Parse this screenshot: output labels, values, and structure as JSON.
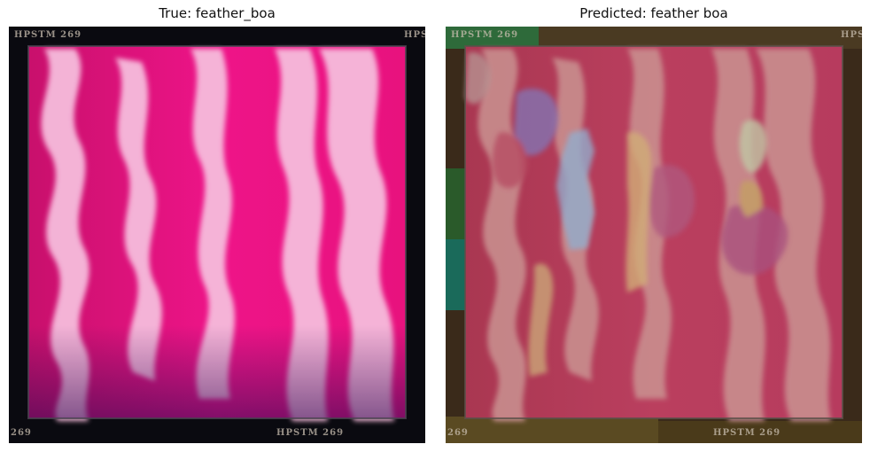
{
  "panels": {
    "left": {
      "title": "True: feather_boa"
    },
    "right": {
      "title": "Predicted: feather boa"
    }
  },
  "photo_stamp": {
    "top": "HPSTM 269",
    "bottom": "HPSTM 269",
    "bottom_left": "269",
    "top_right": "HPS"
  },
  "colors": {
    "background_magenta": "#e6127c",
    "feather_pink": "#f5b8d8",
    "frame_black": "#0a0a10",
    "overlay_tint": "#8a7a3a"
  }
}
